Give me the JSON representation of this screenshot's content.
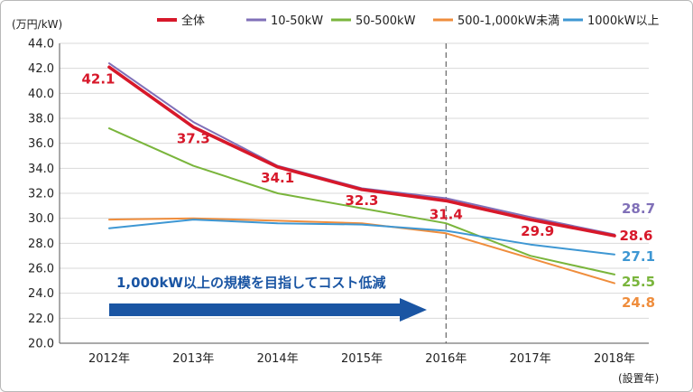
{
  "chart_data": {
    "type": "line",
    "title": "",
    "ylabel": "(万円/kW)",
    "xlabel": "(設置年)",
    "categories": [
      "2012年",
      "2013年",
      "2014年",
      "2015年",
      "2016年",
      "2017年",
      "2018年"
    ],
    "ylim": [
      20.0,
      44.0
    ],
    "yticks": [
      "20.0",
      "22.0",
      "24.0",
      "26.0",
      "28.0",
      "30.0",
      "32.0",
      "34.0",
      "36.0",
      "38.0",
      "40.0",
      "42.0",
      "44.0"
    ],
    "grid": true,
    "legend_position": "top-right",
    "series": [
      {
        "name": "全体",
        "color": "#d7182a",
        "values": [
          42.1,
          37.3,
          34.1,
          32.3,
          31.4,
          29.9,
          28.6
        ],
        "labels": [
          "42.1",
          "37.3",
          "34.1",
          "32.3",
          "31.4",
          "29.9",
          "28.6"
        ]
      },
      {
        "name": "10-50kW",
        "color": "#8070b8",
        "values": [
          42.4,
          37.7,
          34.2,
          32.4,
          31.6,
          30.1,
          28.7
        ],
        "end_label": "28.7"
      },
      {
        "name": "50-500kW",
        "color": "#7ab53c",
        "values": [
          37.2,
          34.2,
          32.0,
          30.8,
          29.6,
          27.0,
          25.5
        ],
        "end_label": "25.5"
      },
      {
        "name": "500-1,000kW未満",
        "color": "#ef8d3c",
        "values": [
          29.9,
          30.0,
          29.8,
          29.6,
          28.8,
          26.8,
          24.8
        ],
        "end_label": "24.8"
      },
      {
        "name": "1000kW以上",
        "color": "#3e97d3",
        "values": [
          29.2,
          29.9,
          29.6,
          29.5,
          29.0,
          27.9,
          27.1
        ],
        "end_label": "27.1"
      }
    ],
    "annotation": {
      "text": "1,000kW以上の規模を目指してコスト低減",
      "color": "#1a55a3"
    },
    "divider_after": "2016年"
  }
}
